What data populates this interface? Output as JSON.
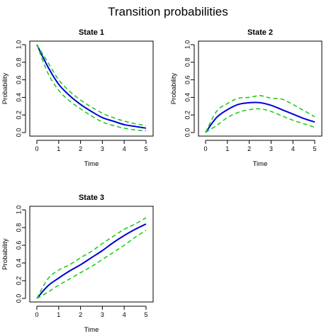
{
  "title": "Transition probabilities",
  "colors": {
    "estimate": "#0000dd",
    "bounds": "#22cc22",
    "axis": "#000000"
  },
  "chart_data": [
    {
      "type": "line",
      "title": "State 1",
      "xlabel": "Time",
      "ylabel": "Probability",
      "xlim": [
        0,
        5
      ],
      "ylim": [
        0,
        1
      ],
      "xticks": [
        "0",
        "1",
        "2",
        "3",
        "4",
        "5"
      ],
      "yticks": [
        "0.0",
        "0.2",
        "0.4",
        "0.6",
        "0.8",
        "1.0"
      ],
      "x": [
        0,
        0.5,
        1,
        1.5,
        2,
        2.5,
        3,
        3.5,
        4,
        4.5,
        5
      ],
      "series": [
        {
          "role": "estimate",
          "style": "solid",
          "values": [
            1.0,
            0.75,
            0.55,
            0.42,
            0.32,
            0.24,
            0.17,
            0.13,
            0.09,
            0.07,
            0.05
          ]
        },
        {
          "role": "upper",
          "style": "dashed",
          "values": [
            1.0,
            0.8,
            0.6,
            0.47,
            0.37,
            0.29,
            0.22,
            0.17,
            0.13,
            0.1,
            0.08
          ]
        },
        {
          "role": "lower",
          "style": "dashed",
          "values": [
            1.0,
            0.68,
            0.48,
            0.36,
            0.27,
            0.19,
            0.12,
            0.08,
            0.05,
            0.03,
            0.02
          ]
        }
      ]
    },
    {
      "type": "line",
      "title": "State 2",
      "xlabel": "Time",
      "ylabel": "Probability",
      "xlim": [
        0,
        5
      ],
      "ylim": [
        0,
        1
      ],
      "xticks": [
        "0",
        "1",
        "2",
        "3",
        "4",
        "5"
      ],
      "yticks": [
        "0.0",
        "0.2",
        "0.4",
        "0.6",
        "0.8",
        "1.0"
      ],
      "x": [
        0,
        0.5,
        1,
        1.5,
        2,
        2.5,
        3,
        3.5,
        4,
        4.5,
        5
      ],
      "series": [
        {
          "role": "estimate",
          "style": "solid",
          "values": [
            0.0,
            0.17,
            0.26,
            0.32,
            0.34,
            0.34,
            0.31,
            0.26,
            0.21,
            0.16,
            0.12
          ]
        },
        {
          "role": "upper",
          "style": "dashed",
          "values": [
            0.0,
            0.24,
            0.33,
            0.39,
            0.4,
            0.42,
            0.39,
            0.38,
            0.32,
            0.25,
            0.18
          ]
        },
        {
          "role": "lower",
          "style": "dashed",
          "values": [
            0.0,
            0.08,
            0.17,
            0.23,
            0.26,
            0.27,
            0.24,
            0.19,
            0.14,
            0.1,
            0.06
          ]
        }
      ]
    },
    {
      "type": "line",
      "title": "State 3",
      "xlabel": "Time",
      "ylabel": "Probability",
      "xlim": [
        0,
        5
      ],
      "ylim": [
        0,
        1
      ],
      "xticks": [
        "0",
        "1",
        "2",
        "3",
        "4",
        "5"
      ],
      "yticks": [
        "0.0",
        "0.2",
        "0.4",
        "0.6",
        "0.8",
        "1.0"
      ],
      "x": [
        0,
        0.5,
        1,
        1.5,
        2,
        2.5,
        3,
        3.5,
        4,
        4.5,
        5
      ],
      "series": [
        {
          "role": "estimate",
          "style": "solid",
          "values": [
            0.0,
            0.14,
            0.23,
            0.31,
            0.38,
            0.46,
            0.54,
            0.63,
            0.71,
            0.78,
            0.84
          ]
        },
        {
          "role": "upper",
          "style": "dashed",
          "values": [
            0.0,
            0.22,
            0.32,
            0.38,
            0.46,
            0.53,
            0.62,
            0.7,
            0.78,
            0.84,
            0.91
          ]
        },
        {
          "role": "lower",
          "style": "dashed",
          "values": [
            0.0,
            0.07,
            0.15,
            0.22,
            0.29,
            0.36,
            0.44,
            0.52,
            0.6,
            0.69,
            0.77
          ]
        }
      ]
    }
  ]
}
